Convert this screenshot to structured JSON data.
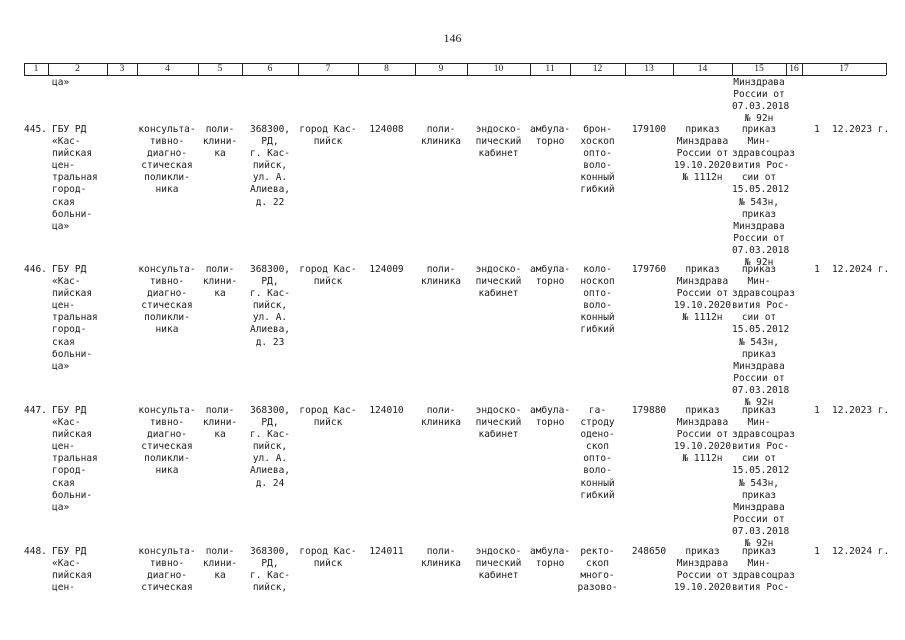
{
  "page_number": "146",
  "header": [
    "1",
    "2",
    "3",
    "4",
    "5",
    "6",
    "7",
    "8",
    "9",
    "10",
    "11",
    "12",
    "13",
    "14",
    "15",
    "16",
    "17"
  ],
  "carry_over": {
    "col2": "ца»",
    "col15": "Минздрава\nРоссии от\n07.03.2018\n№ 92н"
  },
  "rows": [
    {
      "num": "445.",
      "org": "ГБУ РД\n«Кас-\nпийская\nцен-\nтральная\nгород-\nская\nбольни-\nца»",
      "unit_type": "консульта-\nтивно-\nдиагно-\nстическая\nполикли-\nника",
      "unit_kind": "поли-\nклини-\nка",
      "address": "368300,\nРД,\nг. Кас-\nпийск,\nул. А.\nАлиева,\nд. 22",
      "city": "город Кас-\nпийск",
      "code": "124008",
      "dept_type": "поли-\nклиника",
      "cabinet": "эндоско-\nпический\nкабинет",
      "care": "амбула-\nторно",
      "device": "брон-\nхоскоп\nопто-\nволо-\nконный\nгибкий",
      "code2": "179100",
      "order": "приказ\nМинздрава\nРоссии от\n19.10.2020\n№ 1112н",
      "order2": "приказ\nМин-\nздравсоцраз\nвития Рос-\nсии от\n15.05.2012\n№ 543н,\nприказ\nМинздрава\nРоссии от\n07.03.2018\n№ 92н",
      "qty": "1",
      "date": "12.2023 г."
    },
    {
      "num": "446.",
      "org": "ГБУ РД\n«Кас-\nпийская\nцен-\nтральная\nгород-\nская\nбольни-\nца»",
      "unit_type": "консульта-\nтивно-\nдиагно-\nстическая\nполикли-\nника",
      "unit_kind": "поли-\nклини-\nка",
      "address": "368300,\nРД,\nг. Кас-\nпийск,\nул. А.\nАлиева,\nд. 23",
      "city": "город Кас-\nпийск",
      "code": "124009",
      "dept_type": "поли-\nклиника",
      "cabinet": "эндоско-\nпический\nкабинет",
      "care": "амбула-\nторно",
      "device": "коло-\nноскоп\nопто-\nволо-\nконный\nгибкий",
      "code2": "179760",
      "order": "приказ\nМинздрава\nРоссии от\n19.10.2020\n№ 1112н",
      "order2": "приказ\nМин-\nздравсоцраз\nвития Рос-\nсии от\n15.05.2012\n№ 543н,\nприказ\nМинздрава\nРоссии от\n07.03.2018\n№ 92н",
      "qty": "1",
      "date": "12.2024 г."
    },
    {
      "num": "447.",
      "org": "ГБУ РД\n«Кас-\nпийская\nцен-\nтральная\nгород-\nская\nбольни-\nца»",
      "unit_type": "консульта-\nтивно-\nдиагно-\nстическая\nполикли-\nника",
      "unit_kind": "поли-\nклини-\nка",
      "address": "368300,\nРД,\nг. Кас-\nпийск,\nул. А.\nАлиева,\nд. 24",
      "city": "город Кас-\nпийск",
      "code": "124010",
      "dept_type": "поли-\nклиника",
      "cabinet": "эндоско-\nпический\nкабинет",
      "care": "амбула-\nторно",
      "device": "га-\nстроду\nодено-\nскоп\nопто-\nволо-\nконный\nгибкий",
      "code2": "179880",
      "order": "приказ\nМинздрава\nРоссии от\n19.10.2020\n№ 1112н",
      "order2": "приказ\nМин-\nздравсоцраз\nвития Рос-\nсии от\n15.05.2012\n№ 543н,\nприказ\nМинздрава\nРоссии от\n07.03.2018\n№ 92н",
      "qty": "1",
      "date": "12.2023 г."
    },
    {
      "num": "448.",
      "org": "ГБУ РД\n«Кас-\nпийская\nцен-",
      "unit_type": "консульта-\nтивно-\nдиагно-\nстическая",
      "unit_kind": "поли-\nклини-\nка",
      "address": "368300,\nРД,\nг. Кас-\nпийск,",
      "city": "город Кас-\nпийск",
      "code": "124011",
      "dept_type": "поли-\nклиника",
      "cabinet": "эндоско-\nпический\nкабинет",
      "care": "амбула-\nторно",
      "device": "ректо-\nскоп\nмного-\nразово-",
      "code2": "248650",
      "order": "приказ\nМинздрава\nРоссии от\n19.10.2020",
      "order2": "приказ\nМин-\nздравсоцраз\nвития Рос-",
      "qty": "1",
      "date": "12.2024 г."
    }
  ]
}
